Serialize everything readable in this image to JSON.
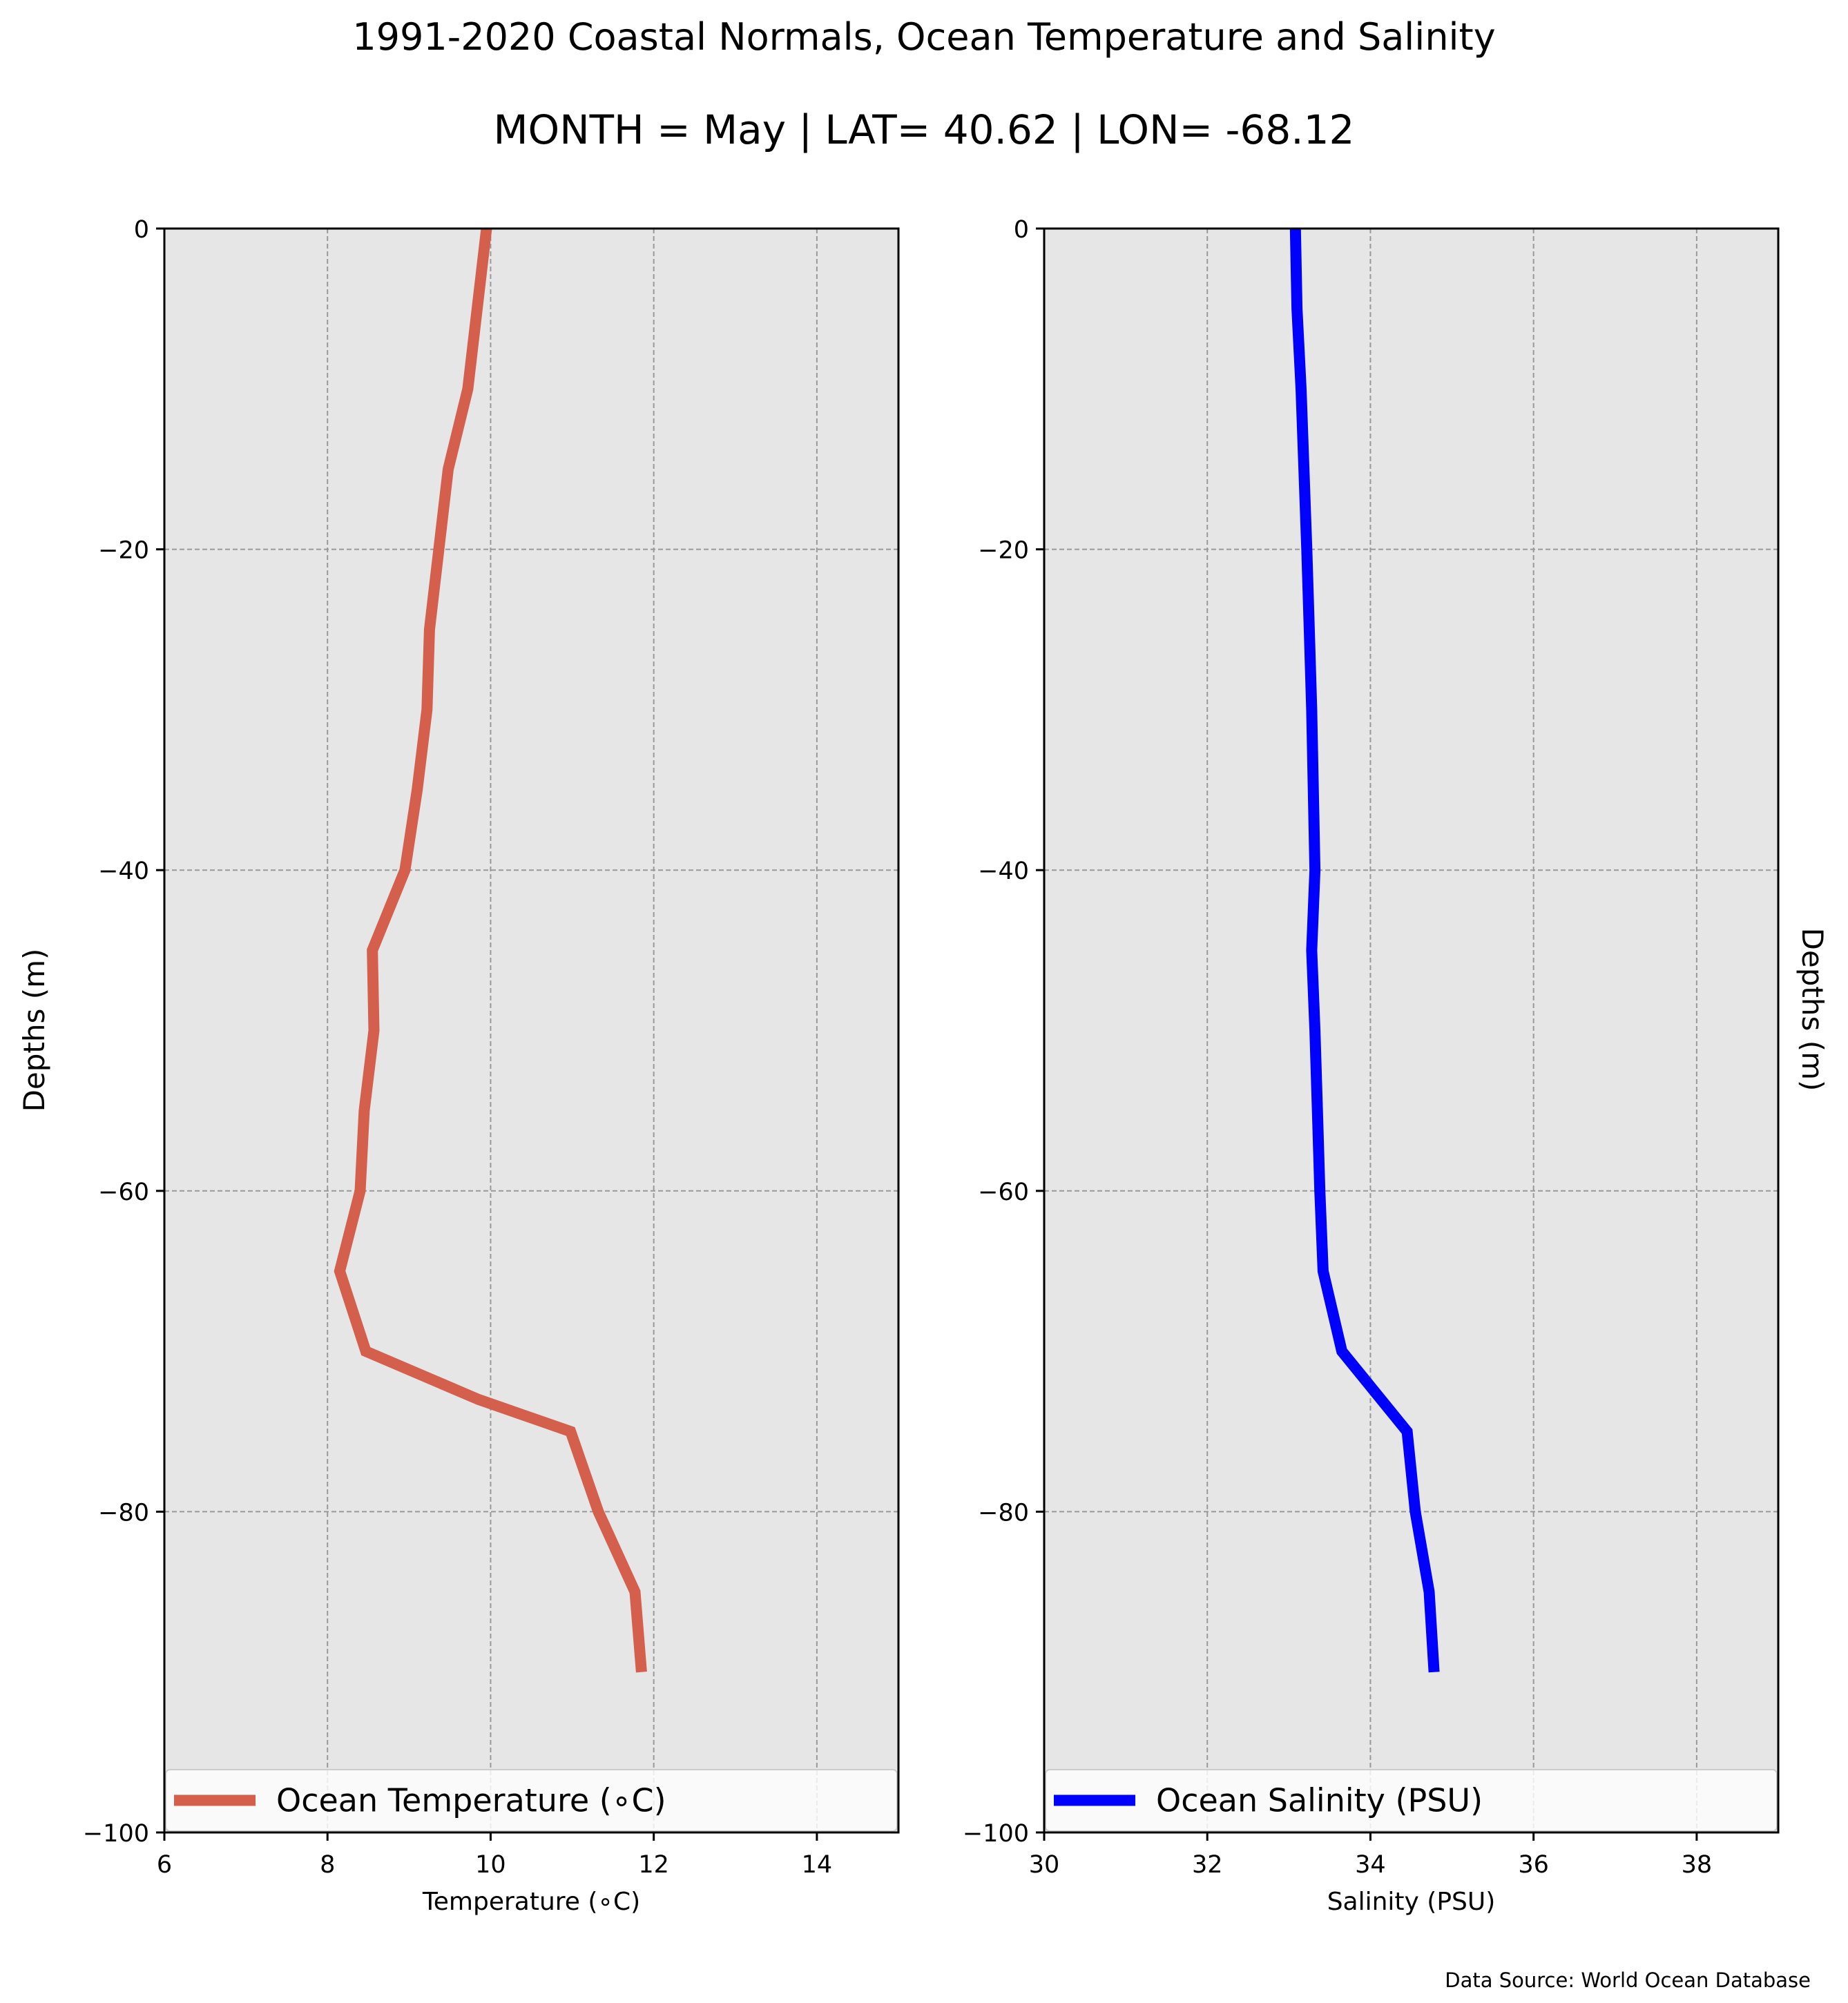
{
  "figure": {
    "title": "1991-2020 Coastal Normals, Ocean Temperature and Salinity",
    "subtitle": "MONTH = May | LAT= 40.62 | LON= -68.12",
    "source_note": "Data Source: World Ocean Database"
  },
  "chart_data": [
    {
      "type": "line",
      "xlabel": "Temperature (∘C)",
      "ylabel": "Depths (m)",
      "xlim": [
        6,
        15
      ],
      "ylim": [
        -100,
        0
      ],
      "xticks": [
        6,
        8,
        10,
        12,
        14
      ],
      "xtick_labels": [
        "6",
        "8",
        "10",
        "12",
        "14"
      ],
      "yticks": [
        0,
        -20,
        -40,
        -60,
        -80,
        -100
      ],
      "ytick_labels": [
        "0",
        "−20",
        "−40",
        "−60",
        "−80",
        "−100"
      ],
      "grid": true,
      "legend_position": "bottom",
      "series": [
        {
          "name": "Ocean Temperature (∘C)",
          "color": "#d45f4d",
          "x": [
            9.95,
            9.72,
            9.48,
            9.25,
            9.22,
            9.1,
            8.95,
            8.55,
            8.57,
            8.45,
            8.4,
            8.15,
            8.47,
            9.85,
            10.98,
            11.32,
            11.77,
            11.85
          ],
          "y": [
            0,
            -10,
            -15,
            -25,
            -30,
            -35,
            -40,
            -45,
            -50,
            -55,
            -60,
            -65,
            -70,
            -73,
            -75,
            -80,
            -85,
            -90
          ]
        }
      ]
    },
    {
      "type": "line",
      "xlabel": "Salinity (PSU)",
      "ylabel": "Depths (m)",
      "xlim": [
        30,
        39
      ],
      "ylim": [
        -100,
        0
      ],
      "xticks": [
        30,
        32,
        34,
        36,
        38
      ],
      "xtick_labels": [
        "30",
        "32",
        "34",
        "36",
        "38"
      ],
      "yticks": [
        0,
        -20,
        -40,
        -60,
        -80,
        -100
      ],
      "ytick_labels": [
        "0",
        "−20",
        "−40",
        "−60",
        "−80",
        "−100"
      ],
      "grid": true,
      "legend_position": "bottom",
      "series": [
        {
          "name": "Ocean Salinity (PSU)",
          "color": "#0000ff",
          "x": [
            33.08,
            33.1,
            33.15,
            33.22,
            33.25,
            33.28,
            33.32,
            33.28,
            33.32,
            33.35,
            33.38,
            33.42,
            33.65,
            34.45,
            34.55,
            34.72,
            34.78
          ],
          "y": [
            0,
            -5,
            -10,
            -20,
            -25,
            -30,
            -40,
            -45,
            -50,
            -55,
            -60,
            -65,
            -70,
            -75,
            -80,
            -85,
            -90
          ]
        }
      ]
    }
  ]
}
